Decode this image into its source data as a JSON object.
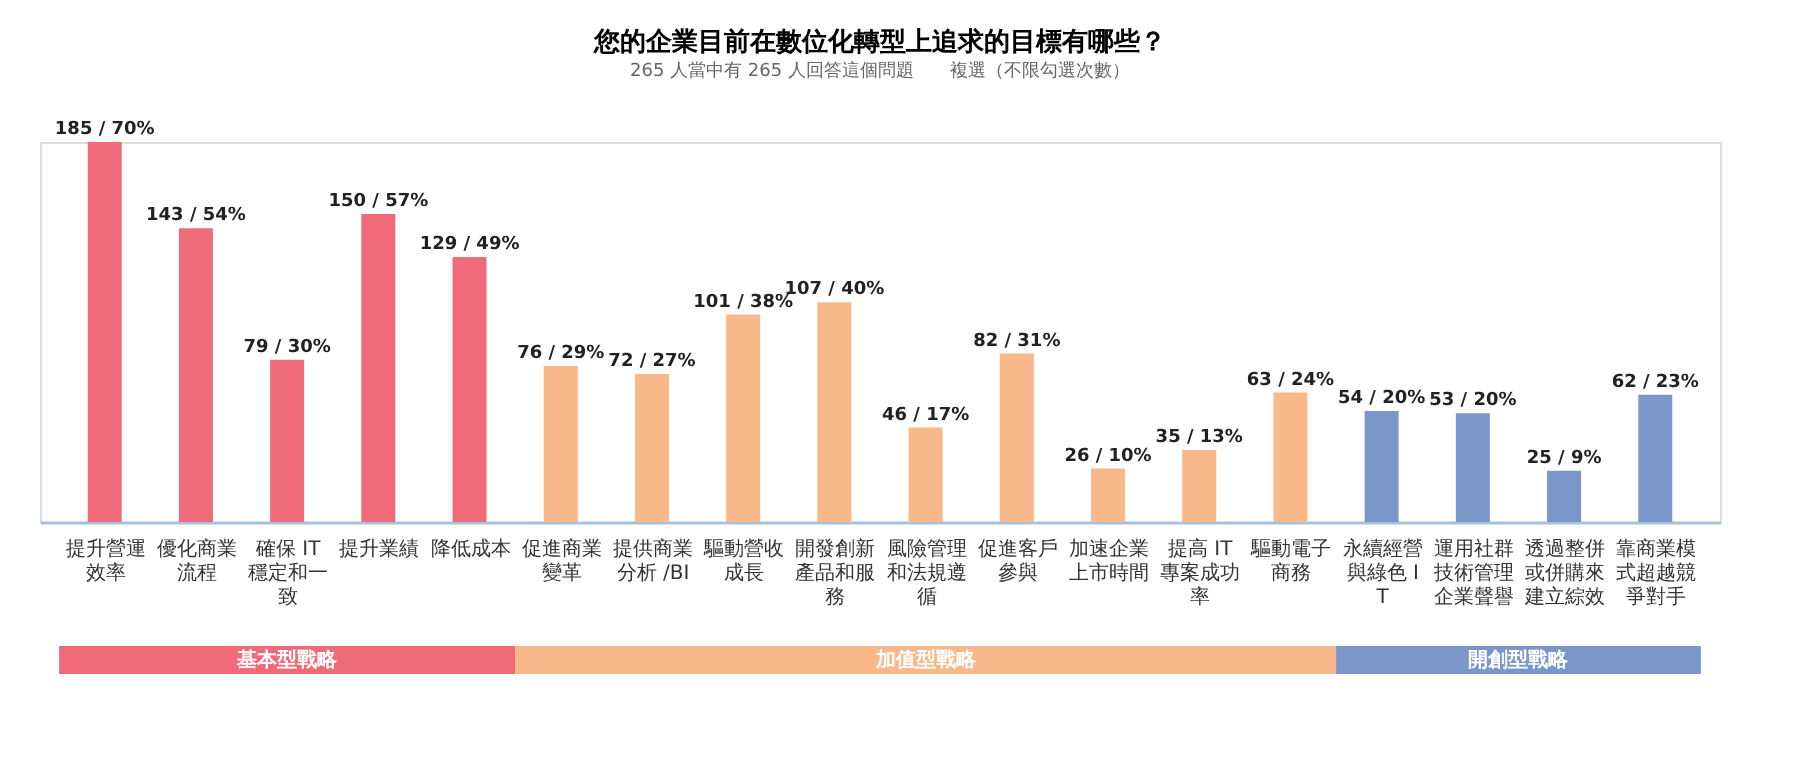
{
  "chart_data": {
    "type": "bar",
    "title": "您的企業目前在數位化轉型上追求的目標有哪些？",
    "subtitle": "265 人當中有 265 人回答這個問題　　複選（不限勾選次數）",
    "categories": [
      "提升營運效率",
      "優化商業流程",
      "確保 IT 穩定和一致",
      "提升業績",
      "降低成本",
      "促進商業變革",
      "提供商業分析 /BI",
      "驅動營收成長",
      "開發創新產品和服務",
      "風險管理和法規遵循",
      "促進客戶參與",
      "加速企業上市時間",
      "提高 IT 專案成功率",
      "驅動電子商務",
      "永續經營與綠色 IT",
      "運用社群技術管理企業聲譽",
      "透過整併或併購來建立綜效",
      "靠商業模式超越競爭對手"
    ],
    "series": [
      {
        "name": "基本型戰略",
        "color": "#f06b7a",
        "values": [
          185,
          143,
          79,
          150,
          129,
          null,
          null,
          null,
          null,
          null,
          null,
          null,
          null,
          null,
          null,
          null,
          null,
          null
        ],
        "value_labels": [
          "185 / 70%",
          "143 / 54%",
          "79 / 30%",
          "150 / 57%",
          "129 / 49%",
          null,
          null,
          null,
          null,
          null,
          null,
          null,
          null,
          null,
          null,
          null,
          null,
          null
        ]
      },
      {
        "name": "加值型戰略",
        "color": "#f9b88a",
        "values": [
          null,
          null,
          null,
          null,
          null,
          76,
          72,
          101,
          107,
          46,
          82,
          26,
          35,
          63,
          null,
          null,
          null,
          null
        ],
        "value_labels": [
          null,
          null,
          null,
          null,
          null,
          "76 / 29%",
          "72 / 27%",
          "101 / 38%",
          "107 / 40%",
          "46 / 17%",
          "82 / 31%",
          "26 / 10%",
          "35 / 13%",
          "63 / 24%",
          null,
          null,
          null,
          null
        ]
      },
      {
        "name": "開創型戰略",
        "color": "#7b96c8",
        "values": [
          null,
          null,
          null,
          null,
          null,
          null,
          null,
          null,
          null,
          null,
          null,
          null,
          null,
          null,
          54,
          53,
          25,
          62
        ],
        "value_labels": [
          null,
          null,
          null,
          null,
          null,
          null,
          null,
          null,
          null,
          null,
          null,
          null,
          null,
          null,
          "54 / 20%",
          "53 / 20%",
          "25 / 9%",
          "62 / 23%"
        ]
      }
    ],
    "grid": false
  }
}
